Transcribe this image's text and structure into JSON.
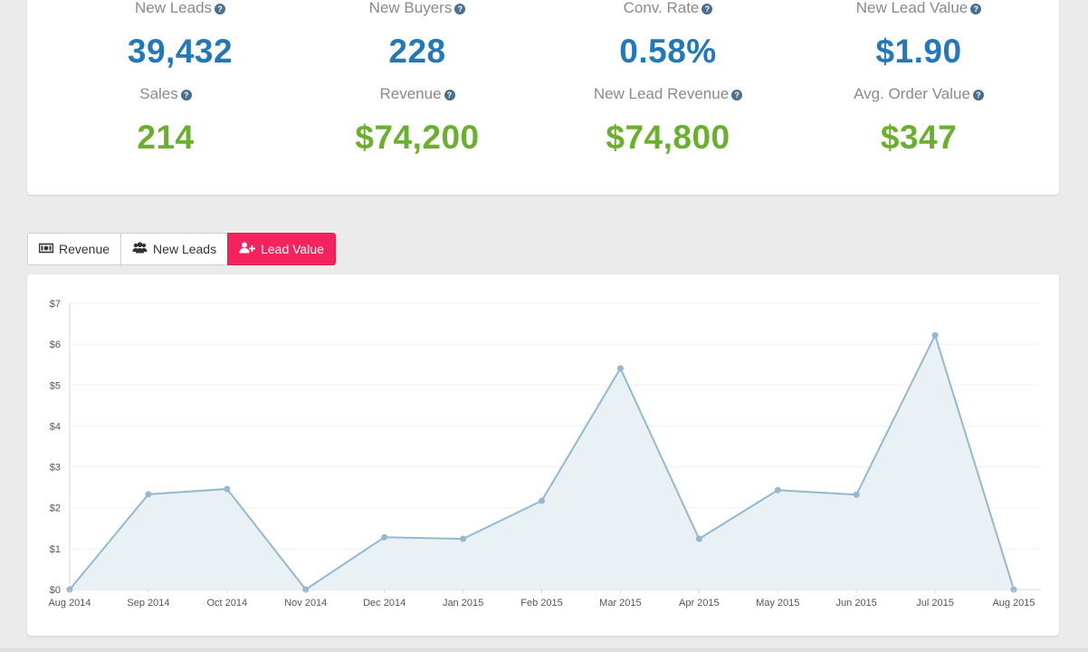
{
  "stats": {
    "new_leads": {
      "label": "New Leads",
      "value": "39,432"
    },
    "new_buyers": {
      "label": "New Buyers",
      "value": "228"
    },
    "conv_rate": {
      "label": "Conv. Rate",
      "value": "0.58%"
    },
    "new_lead_value": {
      "label": "New Lead Value",
      "value": "$1.90"
    },
    "sales": {
      "label": "Sales",
      "value": "214"
    },
    "revenue": {
      "label": "Revenue",
      "value": "$74,200"
    },
    "new_lead_revenue": {
      "label": "New Lead Revenue",
      "value": "$74,800"
    },
    "avg_order_value": {
      "label": "Avg. Order Value",
      "value": "$347"
    },
    "help_glyph": "?"
  },
  "tabs": {
    "revenue": {
      "label": "Revenue",
      "icon": "money-icon"
    },
    "new_leads": {
      "label": "New Leads",
      "icon": "users-icon"
    },
    "lead_value": {
      "label": "Lead Value",
      "icon": "user-plus-icon",
      "active": true
    }
  },
  "colors": {
    "blue_value": "#2378b9",
    "green_value": "#6bb02c",
    "active_tab": "#f4235d",
    "line": "#94b8cf",
    "area": "#e7eff4"
  },
  "chart_data": {
    "type": "area",
    "x": [
      "Aug 2014",
      "Sep 2014",
      "Oct 2014",
      "Nov 2014",
      "Dec 2014",
      "Jan 2015",
      "Feb 2015",
      "Mar 2015",
      "Apr 2015",
      "May 2015",
      "Jun 2015",
      "Jul 2015",
      "Aug 2015"
    ],
    "series": [
      {
        "values": [
          0,
          2.33,
          2.46,
          0,
          1.28,
          1.24,
          2.17,
          5.41,
          1.24,
          2.43,
          2.32,
          6.22,
          0
        ]
      }
    ],
    "y_ticks": [
      "$0",
      "$1",
      "$2",
      "$3",
      "$4",
      "$5",
      "$6",
      "$7"
    ],
    "ylim": [
      0,
      7
    ],
    "grid": true,
    "legend": "none"
  }
}
